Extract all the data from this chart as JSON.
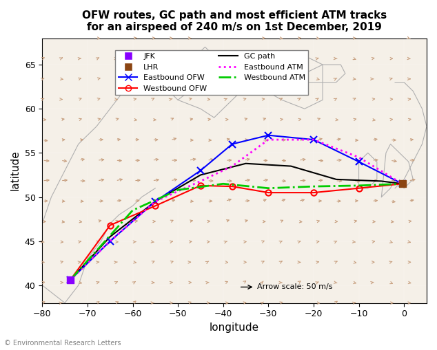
{
  "title": "OFW routes, GC path and most efficient ATM tracks\nfor an airspeed of 240 m/s on 1st December, 2019",
  "xlabel": "longitude",
  "ylabel": "latitude",
  "xlim": [
    -80,
    5
  ],
  "ylim": [
    38,
    68
  ],
  "xticks": [
    -80,
    -70,
    -60,
    -50,
    -40,
    -30,
    -20,
    -10,
    0
  ],
  "yticks": [
    40,
    45,
    50,
    55,
    60,
    65
  ],
  "bg_color": "#f5f0e8",
  "arrow_scale_label": "Arrow scale: 50 m/s",
  "jfk": [
    -73.8,
    40.6
  ],
  "lhr": [
    -0.4,
    51.5
  ],
  "gc_path_lon": [
    -73.8,
    -65,
    -55,
    -45,
    -35,
    -25,
    -15,
    -5,
    -0.4
  ],
  "gc_path_lat": [
    40.6,
    45.5,
    49.5,
    52.5,
    53.8,
    53.5,
    52.0,
    51.8,
    51.5
  ],
  "eastbound_ofw_lon": [
    -73.8,
    -65,
    -55,
    -45,
    -38,
    -30,
    -20,
    -10,
    -0.4
  ],
  "eastbound_ofw_lat": [
    40.6,
    45.0,
    49.5,
    53.0,
    56.0,
    57.0,
    56.5,
    54.0,
    51.5
  ],
  "westbound_ofw_lon": [
    -73.8,
    -65,
    -55,
    -45,
    -38,
    -30,
    -20,
    -10,
    -0.4
  ],
  "westbound_ofw_lat": [
    40.6,
    46.8,
    49.0,
    51.3,
    51.2,
    50.5,
    50.5,
    51.0,
    51.5
  ],
  "eastbound_atm_lon": [
    -73.8,
    -65,
    -55,
    -45,
    -38,
    -30,
    -20,
    -10,
    -0.4
  ],
  "eastbound_atm_lat": [
    40.6,
    45.0,
    49.5,
    51.8,
    53.5,
    56.5,
    56.5,
    54.5,
    51.5
  ],
  "westbound_atm_lon": [
    -73.8,
    -60,
    -50,
    -40,
    -30,
    -20,
    -10,
    -0.4
  ],
  "westbound_atm_lat": [
    40.6,
    48.5,
    50.8,
    51.5,
    51.0,
    51.2,
    51.3,
    51.5
  ],
  "coastline_color": "#b0b0b0",
  "wind_color": "#c8a080",
  "copyright_text": "© Environmental Research Letters"
}
